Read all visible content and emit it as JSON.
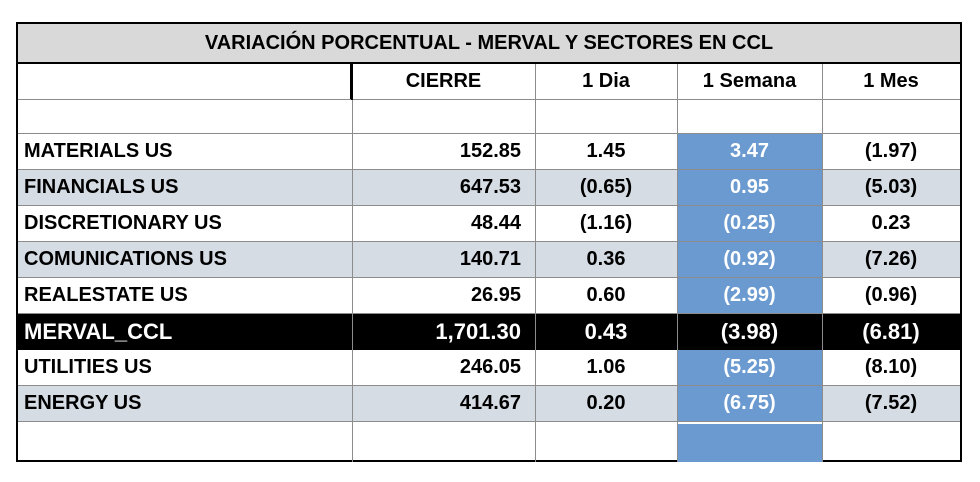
{
  "title": "VARIACIÓN PORCENTUAL  - MERVAL Y SECTORES EN CCL",
  "columns": [
    "",
    "CIERRE",
    "1 Dia",
    "1 Semana",
    "1 Mes"
  ],
  "rows": [
    {
      "name": "MATERIALS US",
      "cierre": "152.85",
      "dia": "1.45",
      "semana": "3.47",
      "mes": "(1.97)"
    },
    {
      "name": "FINANCIALS US",
      "cierre": "647.53",
      "dia": "(0.65)",
      "semana": "0.95",
      "mes": "(5.03)"
    },
    {
      "name": "DISCRETIONARY US",
      "cierre": "48.44",
      "dia": "(1.16)",
      "semana": "(0.25)",
      "mes": "0.23"
    },
    {
      "name": "COMUNICATIONS US",
      "cierre": "140.71",
      "dia": "0.36",
      "semana": "(0.92)",
      "mes": "(7.26)"
    },
    {
      "name": "REALESTATE US",
      "cierre": "26.95",
      "dia": "0.60",
      "semana": "(2.99)",
      "mes": "(0.96)"
    },
    {
      "name": "MERVAL_CCL",
      "cierre": "1,701.30",
      "dia": "0.43",
      "semana": "(3.98)",
      "mes": "(6.81)"
    },
    {
      "name": "UTILITIES US",
      "cierre": "246.05",
      "dia": "1.06",
      "semana": "(5.25)",
      "mes": "(8.10)"
    },
    {
      "name": "ENERGY US",
      "cierre": "414.67",
      "dia": "0.20",
      "semana": "(6.75)",
      "mes": "(7.52)"
    }
  ],
  "colors": {
    "title_bg": "#d9d9d9",
    "band_bg": "#d6dce4",
    "week_column_bg": "#6a9ad0",
    "merval_bg": "#000000"
  }
}
